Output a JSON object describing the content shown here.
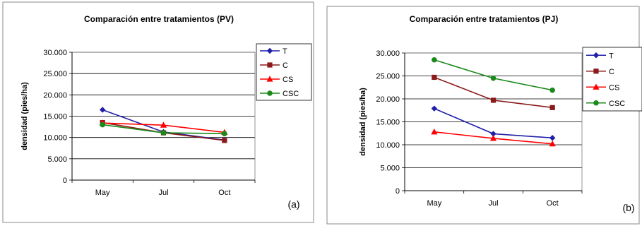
{
  "chart_data": [
    {
      "type": "line",
      "title": "Comparación entre tratamientos (PV)",
      "ylabel": "densidad (pies/ha)",
      "xlabel": "",
      "categories": [
        "May",
        "Jul",
        "Oct"
      ],
      "ylim": [
        0,
        30000
      ],
      "yticks": [
        "0",
        "5.000",
        "10.000",
        "15.000",
        "20.000",
        "25.000",
        "30.000"
      ],
      "grid": true,
      "legend_position": "right",
      "panel_label": "(a)",
      "series": [
        {
          "name": "T",
          "values": [
            16500,
            11300,
            9400
          ],
          "color": "#1f1fa8",
          "marker": "diamond"
        },
        {
          "name": "C",
          "values": [
            13500,
            11100,
            9300
          ],
          "color": "#8b1a1a",
          "marker": "square"
        },
        {
          "name": "CS",
          "values": [
            13400,
            12900,
            11200
          ],
          "color": "#ff0000",
          "marker": "triangle"
        },
        {
          "name": "CSC",
          "values": [
            13000,
            11100,
            10900
          ],
          "color": "#1a8a1a",
          "marker": "circle"
        }
      ]
    },
    {
      "type": "line",
      "title": "Comparación entre tratamientos (PJ)",
      "ylabel": "densidad (pies/ha)",
      "xlabel": "",
      "categories": [
        "May",
        "Jul",
        "Oct"
      ],
      "ylim": [
        0,
        30000
      ],
      "yticks": [
        "0",
        "5.000",
        "10.000",
        "15.000",
        "20.000",
        "25.000",
        "30.000"
      ],
      "grid": true,
      "legend_position": "right",
      "panel_label": "(b)",
      "series": [
        {
          "name": "T",
          "values": [
            17900,
            12400,
            11500
          ],
          "color": "#1f1fa8",
          "marker": "diamond"
        },
        {
          "name": "C",
          "values": [
            24700,
            19700,
            18100
          ],
          "color": "#8b1a1a",
          "marker": "square"
        },
        {
          "name": "CS",
          "values": [
            12800,
            11400,
            10200
          ],
          "color": "#ff0000",
          "marker": "triangle"
        },
        {
          "name": "CSC",
          "values": [
            28500,
            24500,
            21900
          ],
          "color": "#1a8a1a",
          "marker": "circle"
        }
      ]
    }
  ]
}
